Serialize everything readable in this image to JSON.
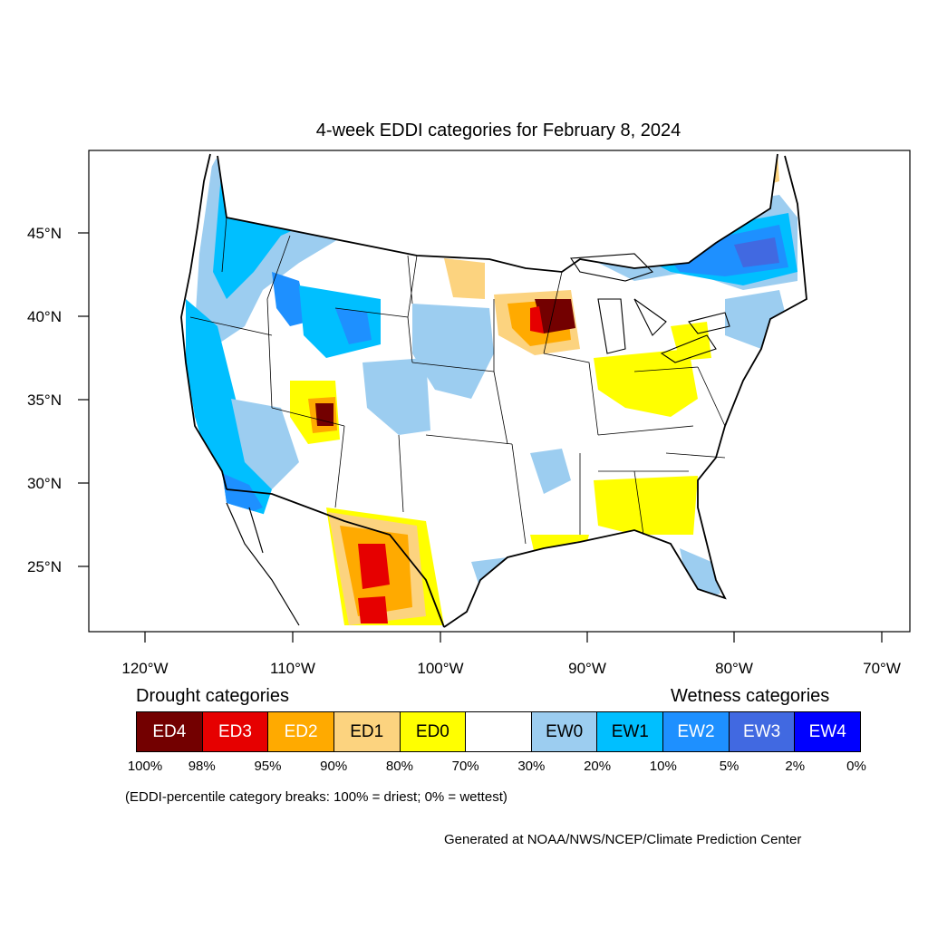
{
  "title": "4-week EDDI categories for February 8, 2024",
  "axes": {
    "lat_labels": [
      "45°N",
      "40°N",
      "35°N",
      "30°N",
      "25°N"
    ],
    "lon_labels": [
      "120°W",
      "110°W",
      "100°W",
      "90°W",
      "80°W",
      "70°W"
    ]
  },
  "legend": {
    "drought_heading": "Drought categories",
    "wetness_heading": "Wetness categories",
    "categories": [
      {
        "label": "ED4",
        "color": "#730000",
        "text_color": "#ffffff"
      },
      {
        "label": "ED3",
        "color": "#e60000",
        "text_color": "#ffffff"
      },
      {
        "label": "ED2",
        "color": "#ffaa00",
        "text_color": "#ffffff"
      },
      {
        "label": "ED1",
        "color": "#fcd37f",
        "text_color": "#000000"
      },
      {
        "label": "ED0",
        "color": "#ffff00",
        "text_color": "#000000"
      },
      {
        "label": "",
        "color": "#ffffff",
        "text_color": "#000000"
      },
      {
        "label": "EW0",
        "color": "#9ccdf0",
        "text_color": "#000000"
      },
      {
        "label": "EW1",
        "color": "#00bfff",
        "text_color": "#000000"
      },
      {
        "label": "EW2",
        "color": "#1e90ff",
        "text_color": "#ffffff"
      },
      {
        "label": "EW3",
        "color": "#4169e1",
        "text_color": "#ffffff"
      },
      {
        "label": "EW4",
        "color": "#0000ff",
        "text_color": "#ffffff"
      }
    ],
    "percentiles": [
      "100%",
      "98%",
      "95%",
      "90%",
      "80%",
      "70%",
      "30%",
      "20%",
      "10%",
      "5%",
      "2%",
      "0%"
    ]
  },
  "note": "(EDDI-percentile category breaks: 100% = driest; 0% = wettest)",
  "credit": "Generated at NOAA/NWS/NCEP/Climate Prediction Center"
}
